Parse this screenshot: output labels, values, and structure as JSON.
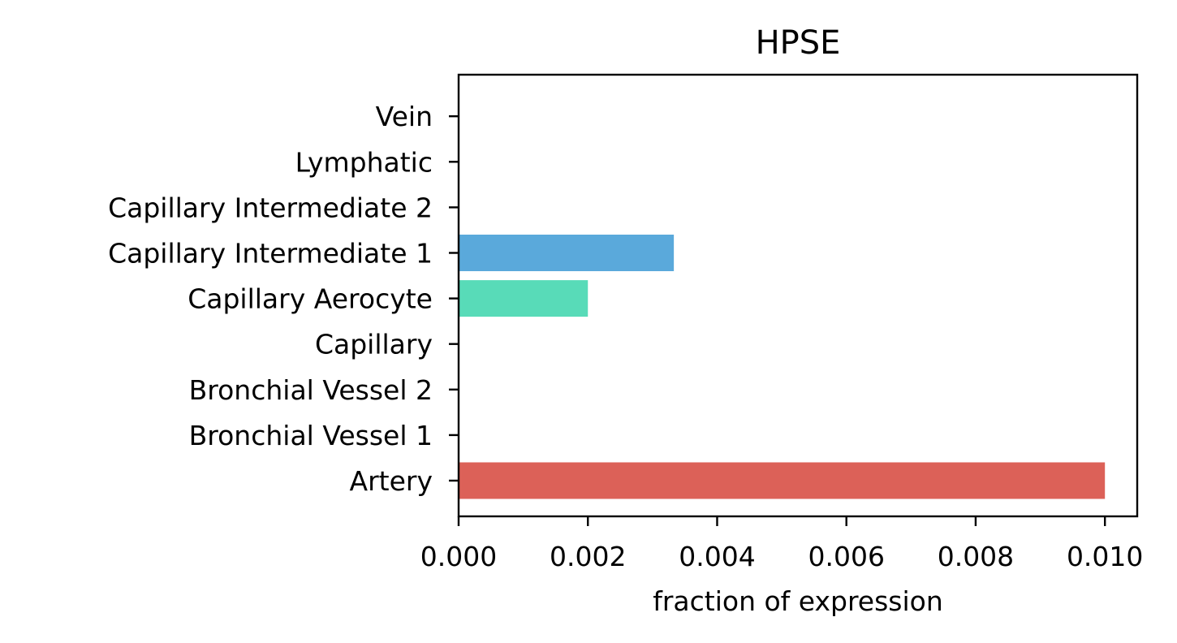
{
  "chart_data": {
    "type": "bar",
    "orientation": "horizontal",
    "title": "HPSE",
    "xlabel": "fraction of expression",
    "ylabel": "",
    "xlim": [
      0,
      0.0105
    ],
    "xticks": [
      0.0,
      0.002,
      0.004,
      0.006,
      0.008,
      0.01
    ],
    "xtick_labels": [
      "0.000",
      "0.002",
      "0.004",
      "0.006",
      "0.008",
      "0.010"
    ],
    "grid": false,
    "categories": [
      "Artery",
      "Bronchial Vessel 1",
      "Bronchial Vessel 2",
      "Capillary",
      "Capillary Aerocyte",
      "Capillary Intermediate 1",
      "Capillary Intermediate 2",
      "Lymphatic",
      "Vein"
    ],
    "values": [
      0.01,
      0.0,
      0.0,
      0.0,
      0.002,
      0.00333,
      0.0,
      0.0,
      0.0
    ],
    "colors": [
      "#dc6158",
      "#dc6158",
      "#dc6158",
      "#dc6158",
      "#58dbb8",
      "#5aa9db",
      "#dc6158",
      "#dc6158",
      "#dc6158"
    ]
  }
}
